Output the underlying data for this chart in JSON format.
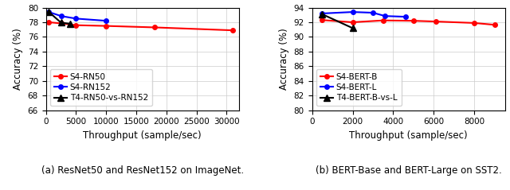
{
  "left": {
    "title": "(a) ResNet50 and ResNet152 on ImageNet.",
    "xlabel": "Throughput (sample/sec)",
    "ylabel": "Accuracy (%)",
    "xlim": [
      0,
      32000
    ],
    "ylim": [
      66,
      80
    ],
    "yticks": [
      66,
      68,
      70,
      72,
      74,
      76,
      78,
      80
    ],
    "xticks": [
      0,
      5000,
      10000,
      15000,
      20000,
      25000,
      30000
    ],
    "series": [
      {
        "label": "S4-RN50",
        "color": "#ff0000",
        "marker": "o",
        "marker_size": 4,
        "x": [
          500,
          2500,
          5000,
          10000,
          18000,
          31000
        ],
        "y": [
          78.0,
          77.85,
          77.6,
          77.5,
          77.3,
          76.9
        ]
      },
      {
        "label": "S4-RN152",
        "color": "#0000ff",
        "marker": "o",
        "marker_size": 4,
        "x": [
          500,
          2500,
          5000,
          10000
        ],
        "y": [
          79.4,
          78.85,
          78.5,
          78.2
        ]
      },
      {
        "label": "T4-RN50-vs-RN152",
        "color": "#000000",
        "marker": "^",
        "marker_size": 6,
        "x": [
          500,
          2500,
          4000
        ],
        "y": [
          79.4,
          77.95,
          77.8
        ]
      }
    ]
  },
  "right": {
    "title": "(b) BERT-Base and BERT-Large on SST2.",
    "xlabel": "Throughput (sample/sec)",
    "ylabel": "Accuracy (%)",
    "xlim": [
      0,
      9500
    ],
    "ylim": [
      80,
      94
    ],
    "yticks": [
      80,
      82,
      84,
      86,
      88,
      90,
      92,
      94
    ],
    "xticks": [
      0,
      2000,
      4000,
      6000,
      8000
    ],
    "series": [
      {
        "label": "S4-BERT-B",
        "color": "#ff0000",
        "marker": "o",
        "marker_size": 4,
        "x": [
          500,
          2000,
          3500,
          5000,
          6100,
          8000,
          9000
        ],
        "y": [
          92.3,
          92.0,
          92.25,
          92.2,
          92.1,
          91.9,
          91.65
        ]
      },
      {
        "label": "S4-BERT-L",
        "color": "#0000ff",
        "marker": "o",
        "marker_size": 4,
        "x": [
          500,
          2000,
          3000,
          3600,
          4600
        ],
        "y": [
          93.2,
          93.4,
          93.3,
          92.85,
          92.75
        ]
      },
      {
        "label": "T4-BERT-B-vs-L",
        "color": "#000000",
        "marker": "^",
        "marker_size": 6,
        "x": [
          500,
          2000
        ],
        "y": [
          93.1,
          91.2
        ]
      }
    ]
  },
  "legend_fontsize": 7.5,
  "axis_fontsize": 8.5,
  "tick_fontsize": 7.5,
  "caption_fontsize": 8.5,
  "linewidth": 1.5
}
